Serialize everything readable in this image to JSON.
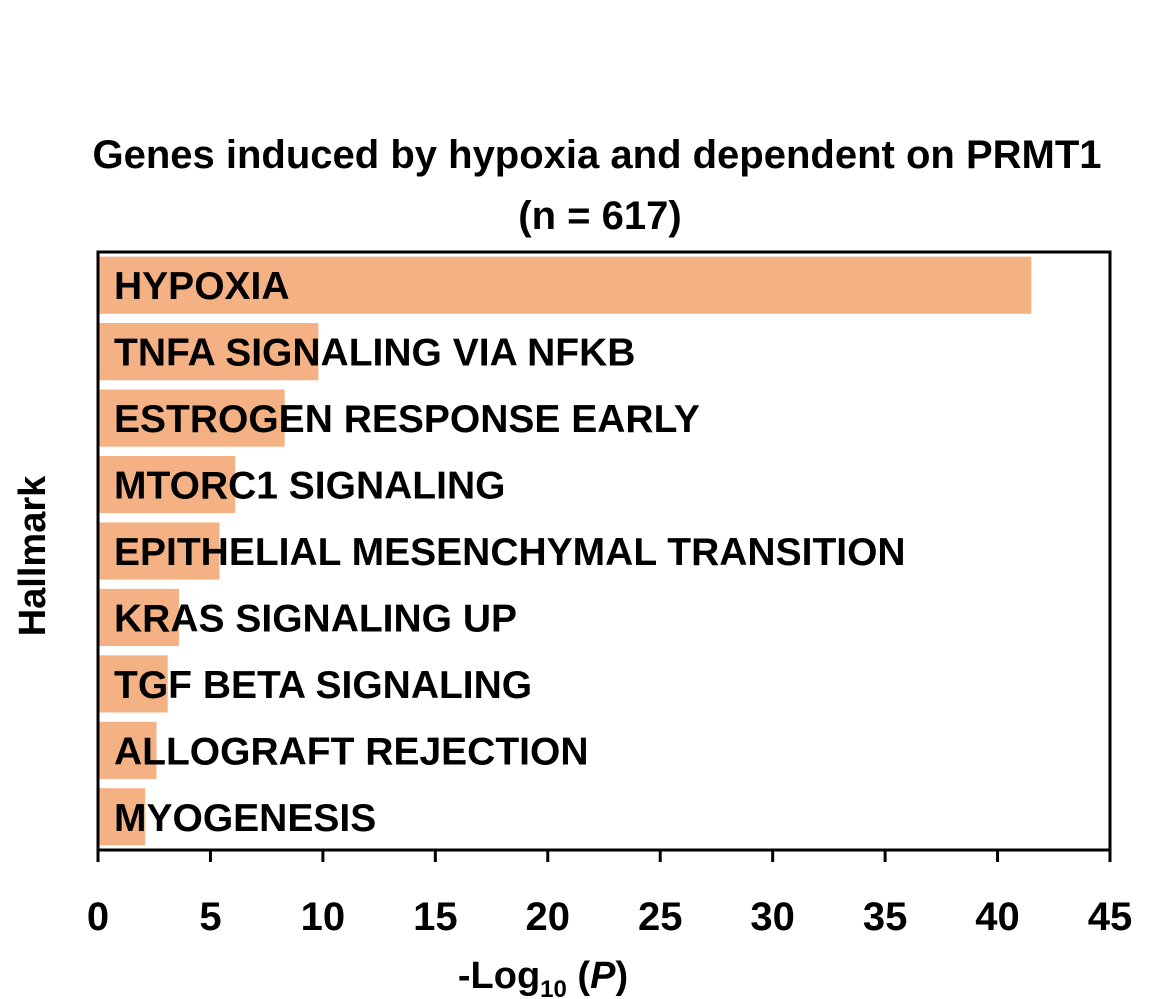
{
  "chart_data": {
    "type": "bar",
    "orientation": "horizontal",
    "title": "Genes induced by hypoxia and dependent on PRMT1",
    "subtitle": "(n = 617)",
    "ylabel": "Hallmark",
    "xlabel": {
      "prefix": "-Log",
      "subscript": "10",
      "open": " (",
      "italic": "P",
      "close": ")"
    },
    "categories": [
      "HYPOXIA",
      "TNFA SIGNALING VIA NFKB",
      "ESTROGEN RESPONSE EARLY",
      "MTORC1 SIGNALING",
      "EPITHELIAL MESENCHYMAL TRANSITION",
      "KRAS SIGNALING UP",
      "TGF BETA SIGNALING",
      "ALLOGRAFT REJECTION",
      "MYOGENESIS"
    ],
    "values": [
      41.5,
      9.8,
      8.3,
      6.1,
      5.4,
      3.6,
      3.1,
      2.6,
      2.1
    ],
    "xlim": [
      0,
      45
    ],
    "xticks": [
      0,
      5,
      10,
      15,
      20,
      25,
      30,
      35,
      40,
      45
    ],
    "bar_color": "#F4B183",
    "grid": false,
    "legend": "none"
  }
}
